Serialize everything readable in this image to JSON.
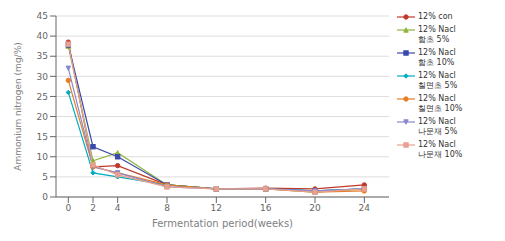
{
  "chart_data": {
    "type": "line",
    "x": [
      0,
      2,
      4,
      8,
      12,
      16,
      20,
      24
    ],
    "series": [
      {
        "name": "12% con",
        "color": "#c0392b",
        "marker": "circle",
        "values": [
          38.5,
          7.5,
          7.8,
          3.0,
          2.0,
          2.2,
          2.0,
          3.0
        ]
      },
      {
        "name": "12% Nacl\n함초 5%",
        "color": "#8db53b",
        "marker": "triangle",
        "values": [
          37.5,
          9.0,
          11.0,
          3.0,
          2.0,
          2.0,
          1.2,
          2.0
        ]
      },
      {
        "name": "12% Nacl\n함초 10%",
        "color": "#3949ab",
        "marker": "square",
        "values": [
          37.8,
          12.5,
          10.0,
          3.0,
          2.0,
          2.0,
          1.5,
          2.0
        ]
      },
      {
        "name": "12% Nacl\n칠면초 5%",
        "color": "#00acc1",
        "marker": "diamond",
        "values": [
          26.0,
          6.0,
          5.0,
          3.0,
          2.0,
          2.0,
          1.5,
          2.0
        ]
      },
      {
        "name": "12% Nacl\n칠면초 10%",
        "color": "#e67e22",
        "marker": "circle",
        "values": [
          29.0,
          7.5,
          6.0,
          3.0,
          2.0,
          2.0,
          1.2,
          1.5
        ]
      },
      {
        "name": "12% Nacl\n나문재 5%",
        "color": "#8888cc",
        "marker": "triangle-down",
        "values": [
          32.0,
          7.5,
          6.0,
          2.5,
          2.0,
          2.0,
          1.5,
          2.0
        ]
      },
      {
        "name": "12% Nacl\n나문재 10%",
        "color": "#e8a090",
        "marker": "square",
        "values": [
          38.0,
          8.0,
          5.5,
          2.5,
          2.0,
          2.0,
          1.2,
          2.0
        ]
      }
    ],
    "xlabel": "Fermentation period(weeks)",
    "ylabel": "Ammonium nitrogen (mg/%)",
    "xlim": [
      -1,
      26
    ],
    "xticks": [
      0,
      2,
      4,
      8,
      12,
      16,
      20,
      24
    ],
    "ylim": [
      0,
      45
    ],
    "yticks": [
      0,
      5,
      10,
      15,
      20,
      25,
      30,
      35,
      40,
      45
    ],
    "grid": true,
    "legend": "right"
  }
}
